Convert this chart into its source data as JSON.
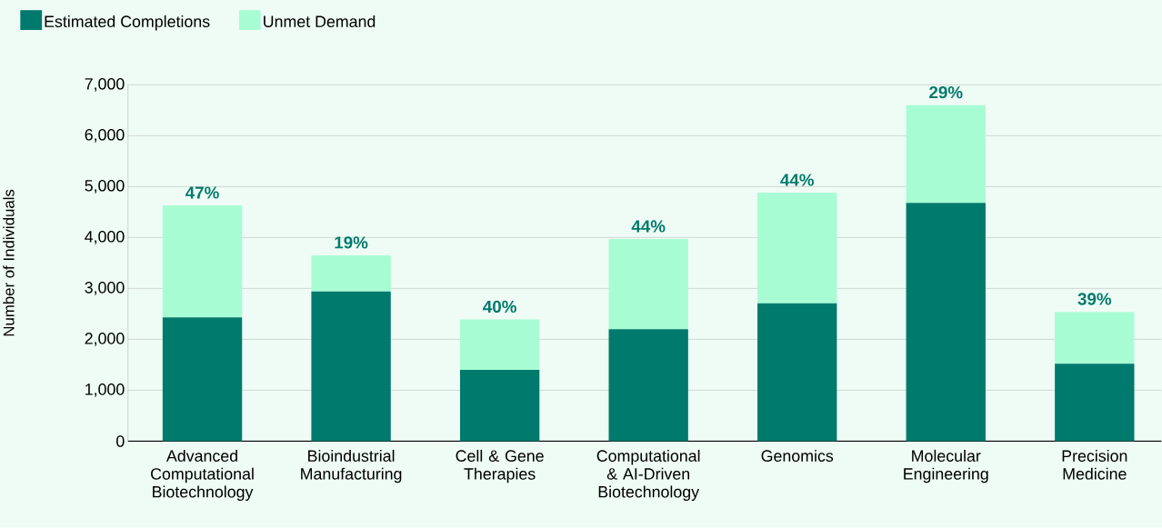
{
  "chart_data": {
    "type": "bar",
    "stacked": true,
    "ylabel": "Number of Individuals",
    "categories": [
      "Advanced Computational Biotechnology",
      "Bioindustrial Manufacturing",
      "Cell & Gene Therapies",
      "Computational & AI-Driven Biotechnology",
      "Genomics",
      "Molecular Engineering",
      "Precision Medicine"
    ],
    "series": [
      {
        "name": "Estimated Completions",
        "color": "#007a6c",
        "values": [
          2430,
          2940,
          1400,
          2200,
          2710,
          4680,
          1520
        ]
      },
      {
        "name": "Unmet Demand",
        "color": "#a8fcd4",
        "values": [
          2200,
          710,
          990,
          1770,
          2170,
          1920,
          1020
        ]
      }
    ],
    "ylim": [
      0,
      7000
    ],
    "yticks": [
      0,
      {
        "value": 1000,
        "label": "1,000"
      },
      {
        "value": 2000,
        "label": "2,000"
      },
      {
        "value": 3000,
        "label": "3,000"
      },
      {
        "value": 4000,
        "label": "4,000"
      },
      {
        "value": 5000,
        "label": "5,000"
      },
      {
        "value": 6000,
        "label": "6,000"
      },
      {
        "value": 7000,
        "label": "7,000"
      }
    ],
    "annotations": [
      {
        "text": "47%",
        "x": "Advanced Computational Biotechnology",
        "y": 4630
      },
      {
        "text": "19%",
        "x": "Bioindustrial Manufacturing",
        "y": 3650
      },
      {
        "text": "40%",
        "x": "Cell & Gene Therapies",
        "y": 2390
      },
      {
        "text": "44%",
        "x": "Computational & AI-Driven Biotechnology",
        "y": 3970
      },
      {
        "text": "44%",
        "x": "Genomics",
        "y": 4880
      },
      {
        "text": "29%",
        "x": "Molecular Engineering",
        "y": 6600
      },
      {
        "text": "39%",
        "x": "Precision Medicine",
        "y": 2540
      }
    ],
    "grid": "y",
    "legend": "top left"
  }
}
